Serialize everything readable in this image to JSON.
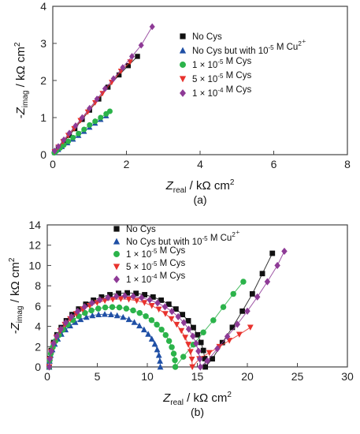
{
  "chart_data": [
    {
      "type": "scatter",
      "panel_label": "(a)",
      "xlabel_main": "Z",
      "xlabel_sub": "real",
      "xlabel_unit": " / kΩ cm",
      "ylabel_main": "-Z",
      "ylabel_sub": "imag",
      "ylabel_unit": " / kΩ cm",
      "unit_exp": "2",
      "xlim": [
        0,
        8
      ],
      "ylim": [
        0,
        4
      ],
      "xticks": [
        "0",
        "2",
        "4",
        "6",
        "8"
      ],
      "yticks": [
        "0",
        "1",
        "2",
        "3",
        "4"
      ],
      "legend_placement": "top-right",
      "grid": false,
      "series": [
        {
          "name": "No Cys",
          "marker": "square",
          "color": "#111111",
          "x": [
            0.05,
            0.15,
            0.3,
            0.45,
            0.6,
            0.8,
            1.0,
            1.25,
            1.5,
            1.8,
            2.05,
            2.3
          ],
          "y": [
            0.08,
            0.2,
            0.36,
            0.52,
            0.7,
            0.95,
            1.2,
            1.5,
            1.82,
            2.15,
            2.4,
            2.65
          ]
        },
        {
          "name": "No Cys but with 10⁻⁵ M Cu²⁺",
          "marker": "triangle",
          "color": "#1f4fa5",
          "x": [
            0.05,
            0.15,
            0.25,
            0.4,
            0.55,
            0.7,
            0.85,
            1.0,
            1.15,
            1.3,
            1.45
          ],
          "y": [
            0.06,
            0.14,
            0.22,
            0.32,
            0.42,
            0.52,
            0.63,
            0.74,
            0.85,
            0.95,
            1.05
          ]
        },
        {
          "name": "1 × 10⁻⁵ M Cys",
          "marker": "circle",
          "color": "#2bb34a",
          "x": [
            0.04,
            0.1,
            0.2,
            0.3,
            0.42,
            0.55,
            0.7,
            0.85,
            1.0,
            1.15,
            1.3,
            1.45,
            1.55
          ],
          "y": [
            0.05,
            0.1,
            0.18,
            0.26,
            0.36,
            0.46,
            0.57,
            0.68,
            0.8,
            0.9,
            1.0,
            1.1,
            1.17
          ]
        },
        {
          "name": "5 × 10⁻⁵ M Cys",
          "marker": "triangle-down",
          "color": "#e8322d",
          "x": [
            0.05,
            0.15,
            0.28,
            0.42,
            0.58,
            0.75,
            0.95,
            1.15,
            1.35,
            1.6,
            1.85,
            2.1
          ],
          "y": [
            0.08,
            0.2,
            0.35,
            0.52,
            0.7,
            0.92,
            1.15,
            1.4,
            1.65,
            1.95,
            2.25,
            2.5
          ]
        },
        {
          "name": "1 × 10⁻⁴ M Cys",
          "marker": "diamond",
          "color": "#8e3a96",
          "x": [
            0.05,
            0.15,
            0.3,
            0.45,
            0.62,
            0.8,
            1.0,
            1.2,
            1.42,
            1.65,
            1.9,
            2.15,
            2.4,
            2.7
          ],
          "y": [
            0.1,
            0.22,
            0.4,
            0.58,
            0.78,
            1.0,
            1.25,
            1.5,
            1.78,
            2.05,
            2.35,
            2.65,
            2.95,
            3.45
          ]
        }
      ]
    },
    {
      "type": "scatter",
      "panel_label": "(b)",
      "xlabel_main": "Z",
      "xlabel_sub": "real",
      "xlabel_unit": " / kΩ cm",
      "ylabel_main": "-Z",
      "ylabel_sub": "imag",
      "ylabel_unit": " / kΩ cm",
      "unit_exp": "2",
      "xlim": [
        0,
        30
      ],
      "ylim": [
        0,
        14
      ],
      "xticks": [
        "0",
        "5",
        "10",
        "15",
        "20",
        "25",
        "30"
      ],
      "yticks": [
        "0",
        "2",
        "4",
        "6",
        "8",
        "10",
        "12",
        "14"
      ],
      "legend_placement": "top-left",
      "grid": false,
      "series": [
        {
          "name": "No Cys",
          "marker": "square",
          "color": "#111111",
          "arc": {
            "start": 0.2,
            "end": 15.8,
            "height": 7.3
          },
          "tail_x": [
            16.5,
            17.5,
            18.5,
            19.5,
            20.5,
            21.5,
            22.5
          ],
          "tail_y": [
            0.8,
            2.4,
            3.9,
            5.5,
            7.2,
            9.2,
            11.2
          ]
        },
        {
          "name": "No Cys but with 10⁻⁵ M Cu²⁺",
          "marker": "triangle",
          "color": "#1f4fa5",
          "arc": {
            "start": 0.2,
            "end": 11.3,
            "height": 5.2
          },
          "tail_x": [],
          "tail_y": []
        },
        {
          "name": "1 × 10⁻⁵ M Cys",
          "marker": "circle",
          "color": "#2bb34a",
          "arc": {
            "start": 0.2,
            "end": 12.8,
            "height": 5.9
          },
          "tail_x": [
            13.6,
            14.6,
            15.6,
            16.6,
            17.6,
            18.6,
            19.6
          ],
          "tail_y": [
            1.0,
            2.2,
            3.4,
            4.6,
            5.9,
            7.2,
            8.4
          ]
        },
        {
          "name": "5 × 10⁻⁵ M Cys",
          "marker": "triangle-down",
          "color": "#e8322d",
          "arc": {
            "start": 0.2,
            "end": 14.5,
            "height": 6.7
          },
          "tail_x": [
            15.2,
            16.2,
            17.2,
            18.2,
            19.2,
            20.3
          ],
          "tail_y": [
            0.8,
            1.4,
            2.0,
            2.6,
            3.2,
            3.9
          ]
        },
        {
          "name": "1 × 10⁻⁴ M Cys",
          "marker": "diamond",
          "color": "#8e3a96",
          "arc": {
            "start": 0.2,
            "end": 15.3,
            "height": 7.0
          },
          "tail_x": [
            16.0,
            17.0,
            18.0,
            19.0,
            20.0,
            21.0,
            22.0,
            23.0,
            23.7
          ],
          "tail_y": [
            0.6,
            1.8,
            3.0,
            4.2,
            5.5,
            6.9,
            8.4,
            10.0,
            11.4
          ]
        }
      ]
    }
  ]
}
